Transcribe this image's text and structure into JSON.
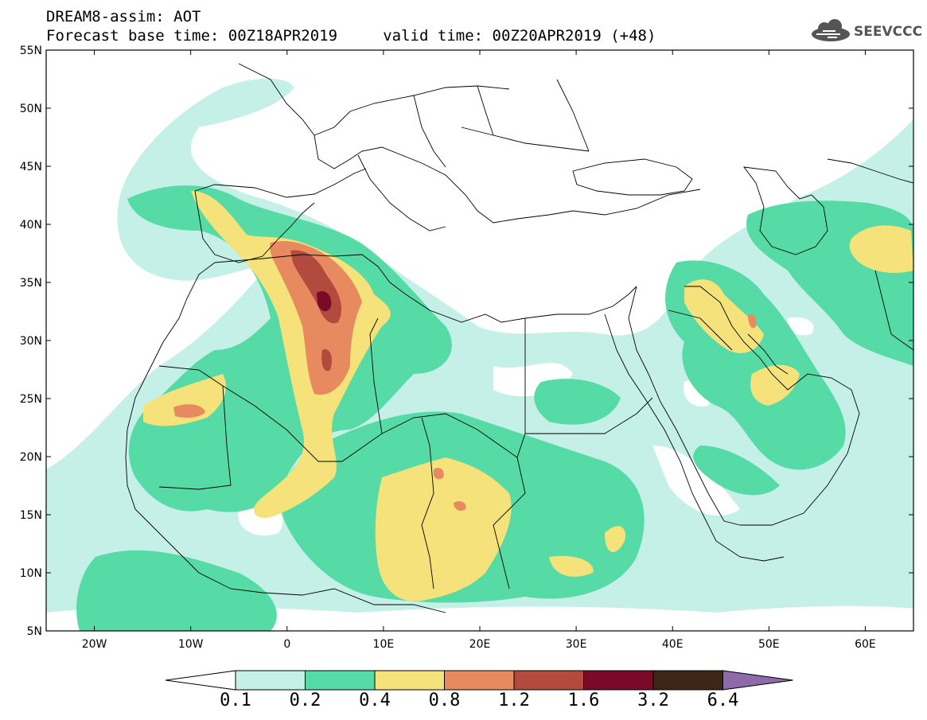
{
  "header": {
    "title_line1": "DREAM8-assim: AOT",
    "title_line2": "Forecast base time: 00Z18APR2019     valid time: 00Z20APR2019 (+48)",
    "logo_text": "SEEVCCC"
  },
  "map": {
    "lon_range": [
      -25,
      65
    ],
    "lat_range": [
      5,
      55
    ],
    "lon_ticks": [
      "20W",
      "10W",
      "0",
      "10E",
      "20E",
      "30E",
      "40E",
      "50E",
      "60E"
    ],
    "lat_ticks": [
      "55N",
      "50N",
      "45N",
      "40N",
      "35N",
      "30N",
      "25N",
      "20N",
      "15N",
      "10N",
      "5N"
    ]
  },
  "colorbar": {
    "labels": [
      "0.1",
      "0.2",
      "0.4",
      "0.8",
      "1.2",
      "1.6",
      "3.2",
      "6.4"
    ],
    "colors": [
      "#ffffff",
      "#c4f0e8",
      "#56dba7",
      "#f6e27a",
      "#e88a5f",
      "#b24a3e",
      "#7a0a28",
      "#3d2617",
      "#8e6aab"
    ]
  },
  "colors": {
    "v01": "#c4f0e8",
    "v02": "#56dba7",
    "v04": "#f6e27a",
    "v08": "#e88a5f",
    "v12": "#b24a3e",
    "v16": "#7a0a28"
  }
}
